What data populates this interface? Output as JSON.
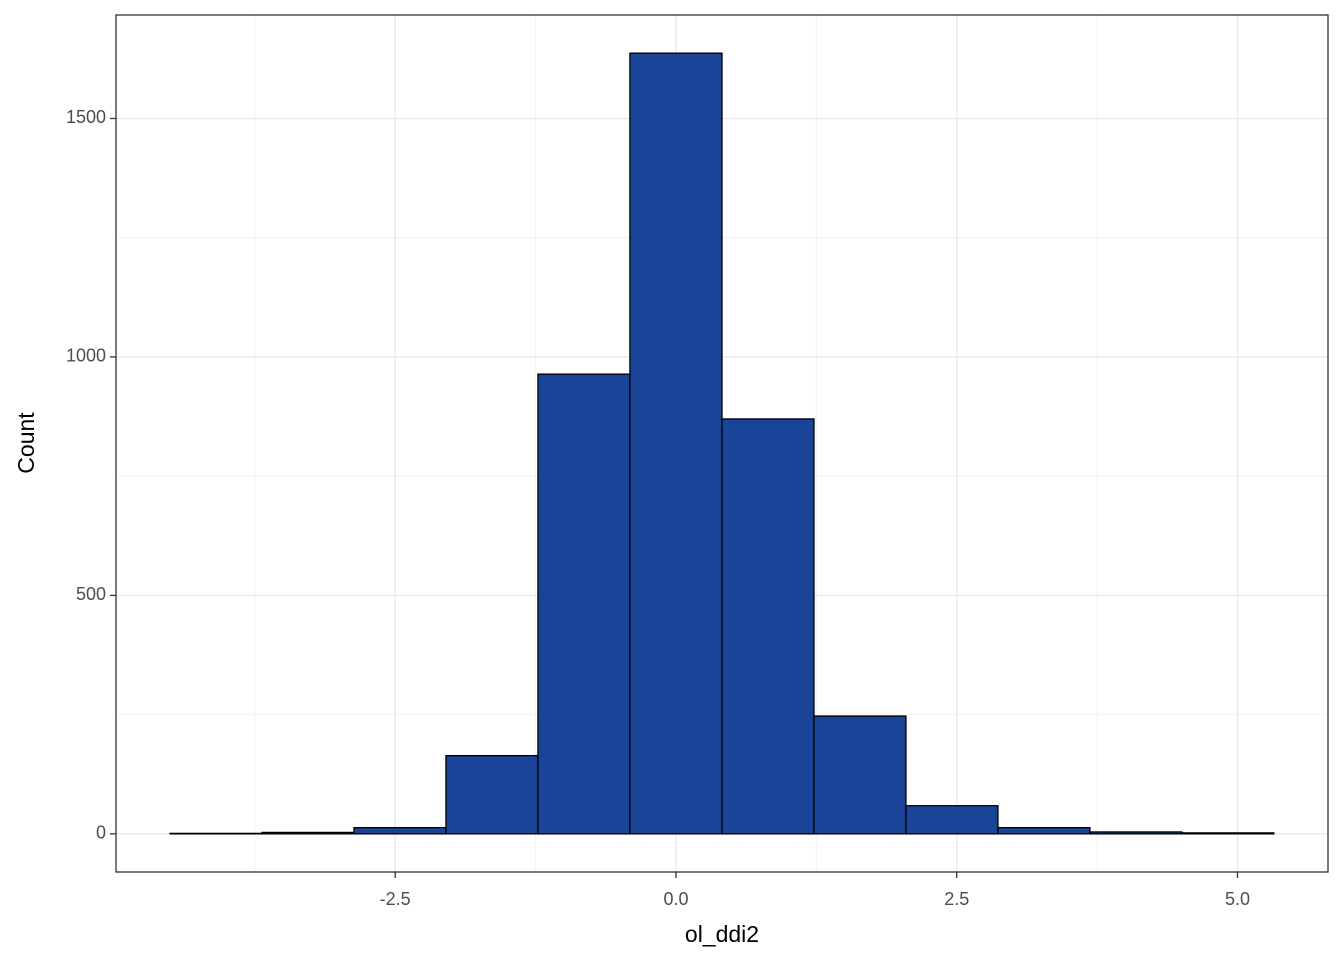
{
  "chart_data": {
    "type": "histogram",
    "x_label": "ol_ddi2",
    "y_label": "Count",
    "bins": [
      -4.505,
      -3.686,
      -2.867,
      -2.048,
      -1.229,
      -0.41,
      0.41,
      1.229,
      2.048,
      2.867,
      3.686,
      4.505,
      5.324
    ],
    "values": [
      1,
      3,
      13,
      164,
      964,
      1637,
      870,
      247,
      59,
      13,
      4,
      2
    ],
    "color": "#1a4498",
    "edge_color": "#000000",
    "xlim": [
      -4.986,
      5.806
    ],
    "ylim": [
      -80,
      1717
    ],
    "xticks": [
      -2.5,
      {
        "value": 0,
        "label": "0.0"
      },
      2.5,
      {
        "value": 5,
        "label": "5.0"
      }
    ],
    "yticks": [
      0,
      500,
      1000,
      1500
    ],
    "grid": true
  }
}
